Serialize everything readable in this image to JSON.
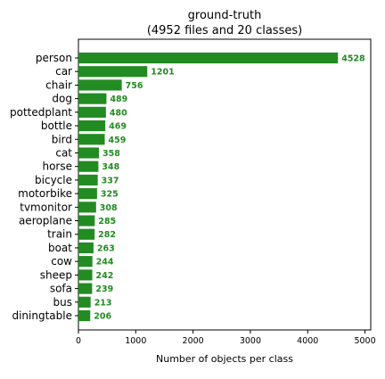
{
  "chart_data": {
    "type": "bar",
    "orientation": "horizontal",
    "title": "ground-truth",
    "subtitle": "(4952 files and 20 classes)",
    "xlabel": "Number of objects per class",
    "ylabel": "",
    "xlim": [
      0,
      5100
    ],
    "xticks": [
      "0",
      "1000",
      "2000",
      "3000",
      "4000",
      "5000"
    ],
    "grid": false,
    "bar_color": "#228b22",
    "label_color": "#228b22",
    "categories": [
      "person",
      "car",
      "chair",
      "dog",
      "pottedplant",
      "bottle",
      "bird",
      "cat",
      "horse",
      "bicycle",
      "motorbike",
      "tvmonitor",
      "aeroplane",
      "train",
      "boat",
      "cow",
      "sheep",
      "sofa",
      "bus",
      "diningtable"
    ],
    "values": [
      4528,
      1201,
      756,
      489,
      480,
      469,
      459,
      358,
      348,
      337,
      325,
      308,
      285,
      282,
      263,
      244,
      242,
      239,
      213,
      206
    ]
  }
}
